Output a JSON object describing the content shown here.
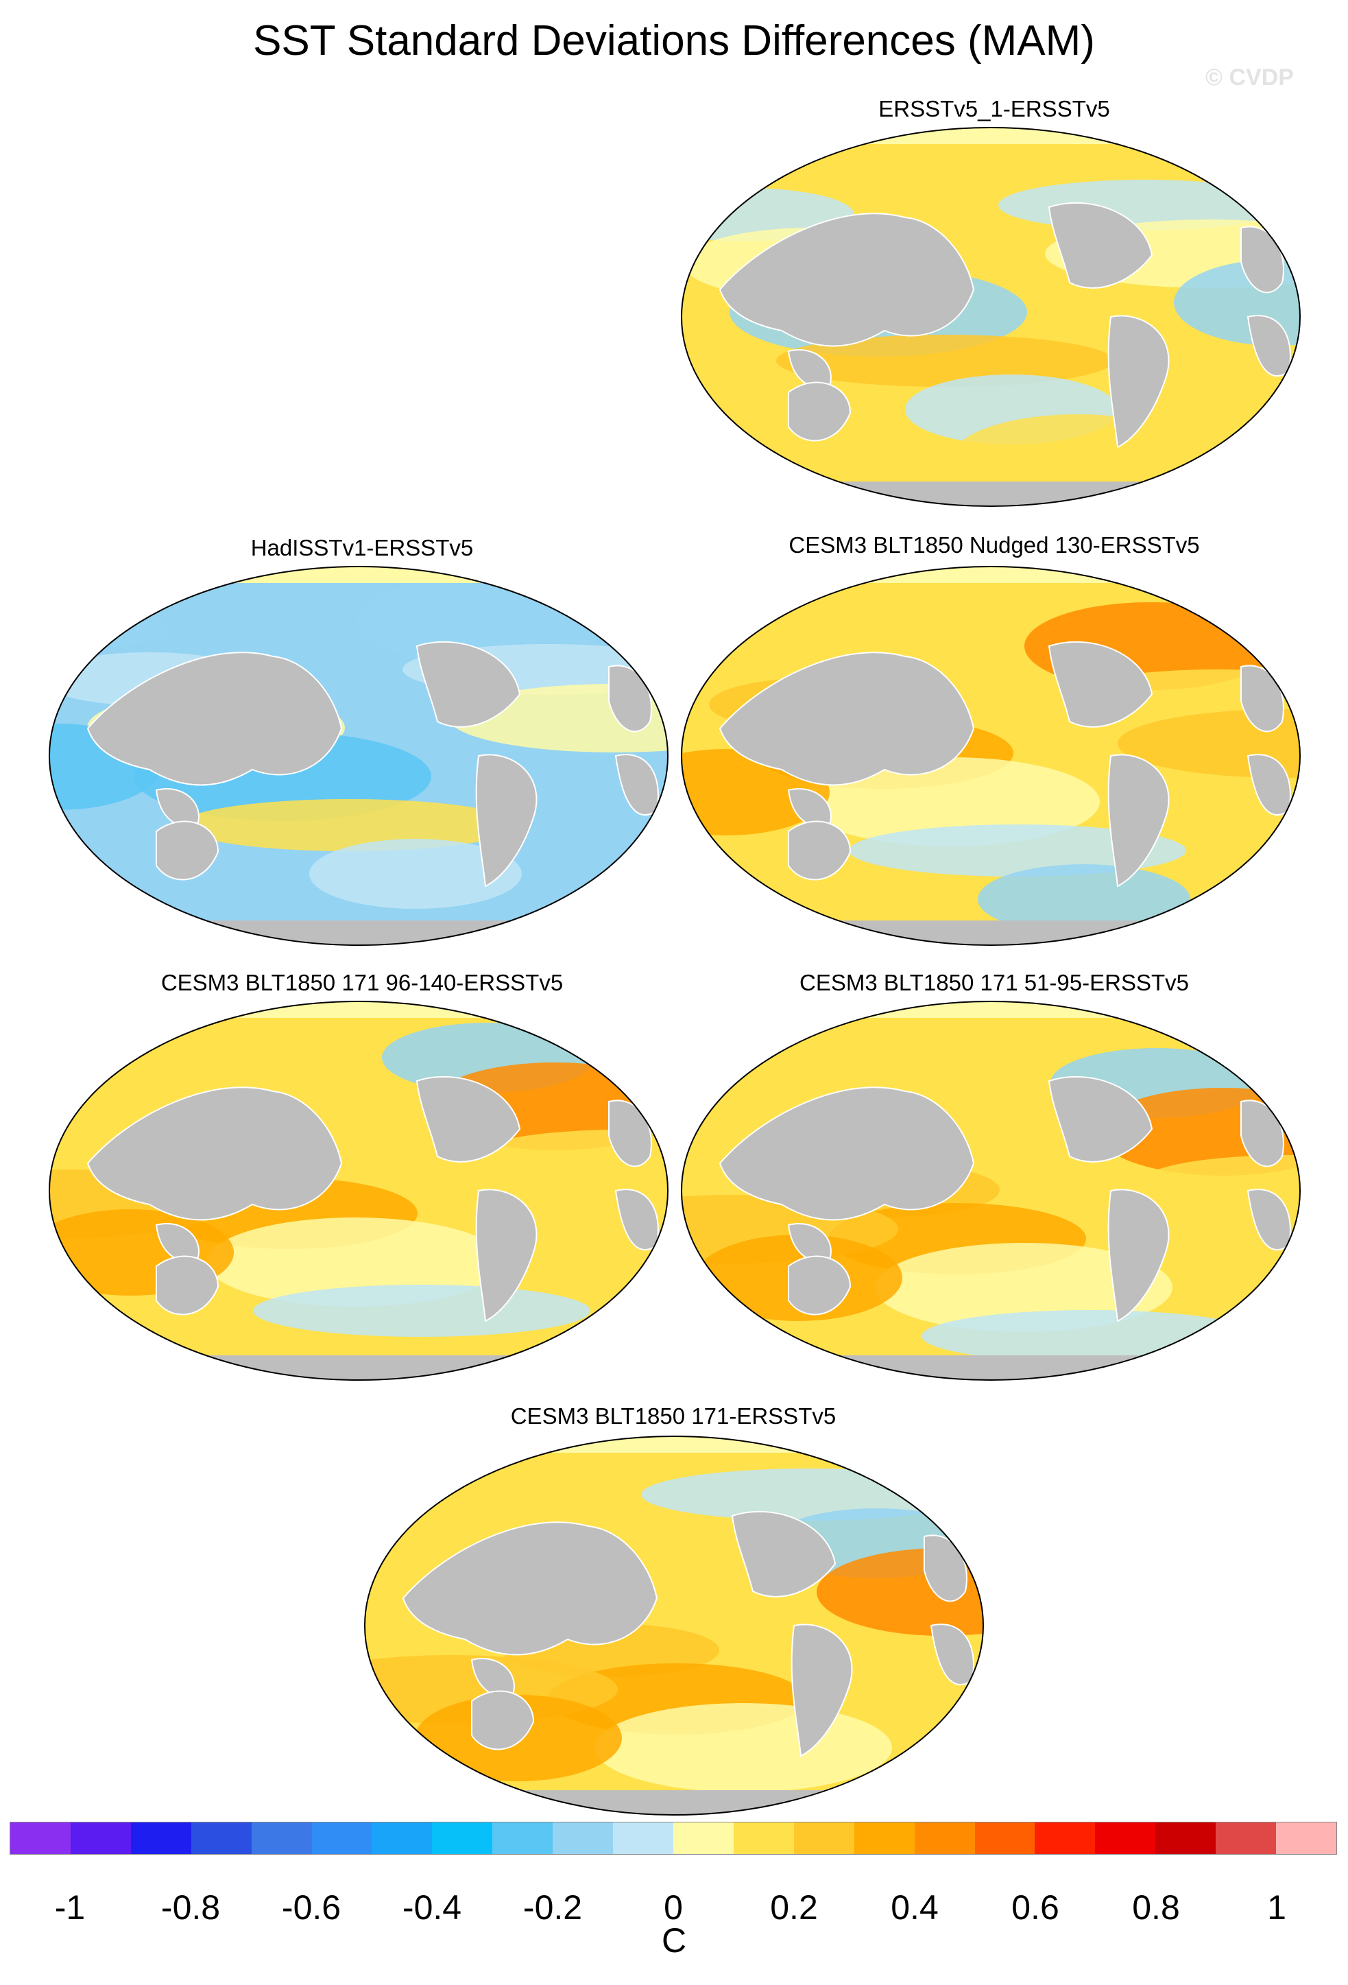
{
  "title": "SST Standard Deviations Differences (MAM)",
  "watermark": "© CVDP",
  "panels": [
    {
      "label": "ERSSTv5_1-ERSSTv5",
      "pattern": "mixed-cool"
    },
    {
      "label": "HadISSTv1-ERSSTv5",
      "pattern": "cool"
    },
    {
      "label": "CESM3 BLT1850 Nudged 130-ERSSTv5",
      "pattern": "warm"
    },
    {
      "label": "CESM3 BLT1850 171 96-140-ERSSTv5",
      "pattern": "warm"
    },
    {
      "label": "CESM3 BLT1850 171 51-95-ERSSTv5",
      "pattern": "warm"
    },
    {
      "label": "CESM3 BLT1850 171-ERSSTv5",
      "pattern": "warm"
    }
  ],
  "colorbar": {
    "colors": [
      "#8a2ff0",
      "#5a1cf0",
      "#1e1ef0",
      "#2b4fe0",
      "#3c78e6",
      "#2f8df5",
      "#19a4fa",
      "#07c0fa",
      "#5ac6f4",
      "#95d3f2",
      "#bfe5f6",
      "#fffaa6",
      "#ffe14c",
      "#ffc82a",
      "#ffaa00",
      "#ff8c00",
      "#ff5f00",
      "#ff2000",
      "#ee0000",
      "#cc0000",
      "#e04848",
      "#ffb3b3"
    ],
    "tick_labels": [
      "-1",
      "-0.8",
      "-0.6",
      "-0.4",
      "-0.2",
      "0",
      "0.2",
      "0.4",
      "0.6",
      "0.8",
      "1"
    ],
    "units": "C"
  }
}
